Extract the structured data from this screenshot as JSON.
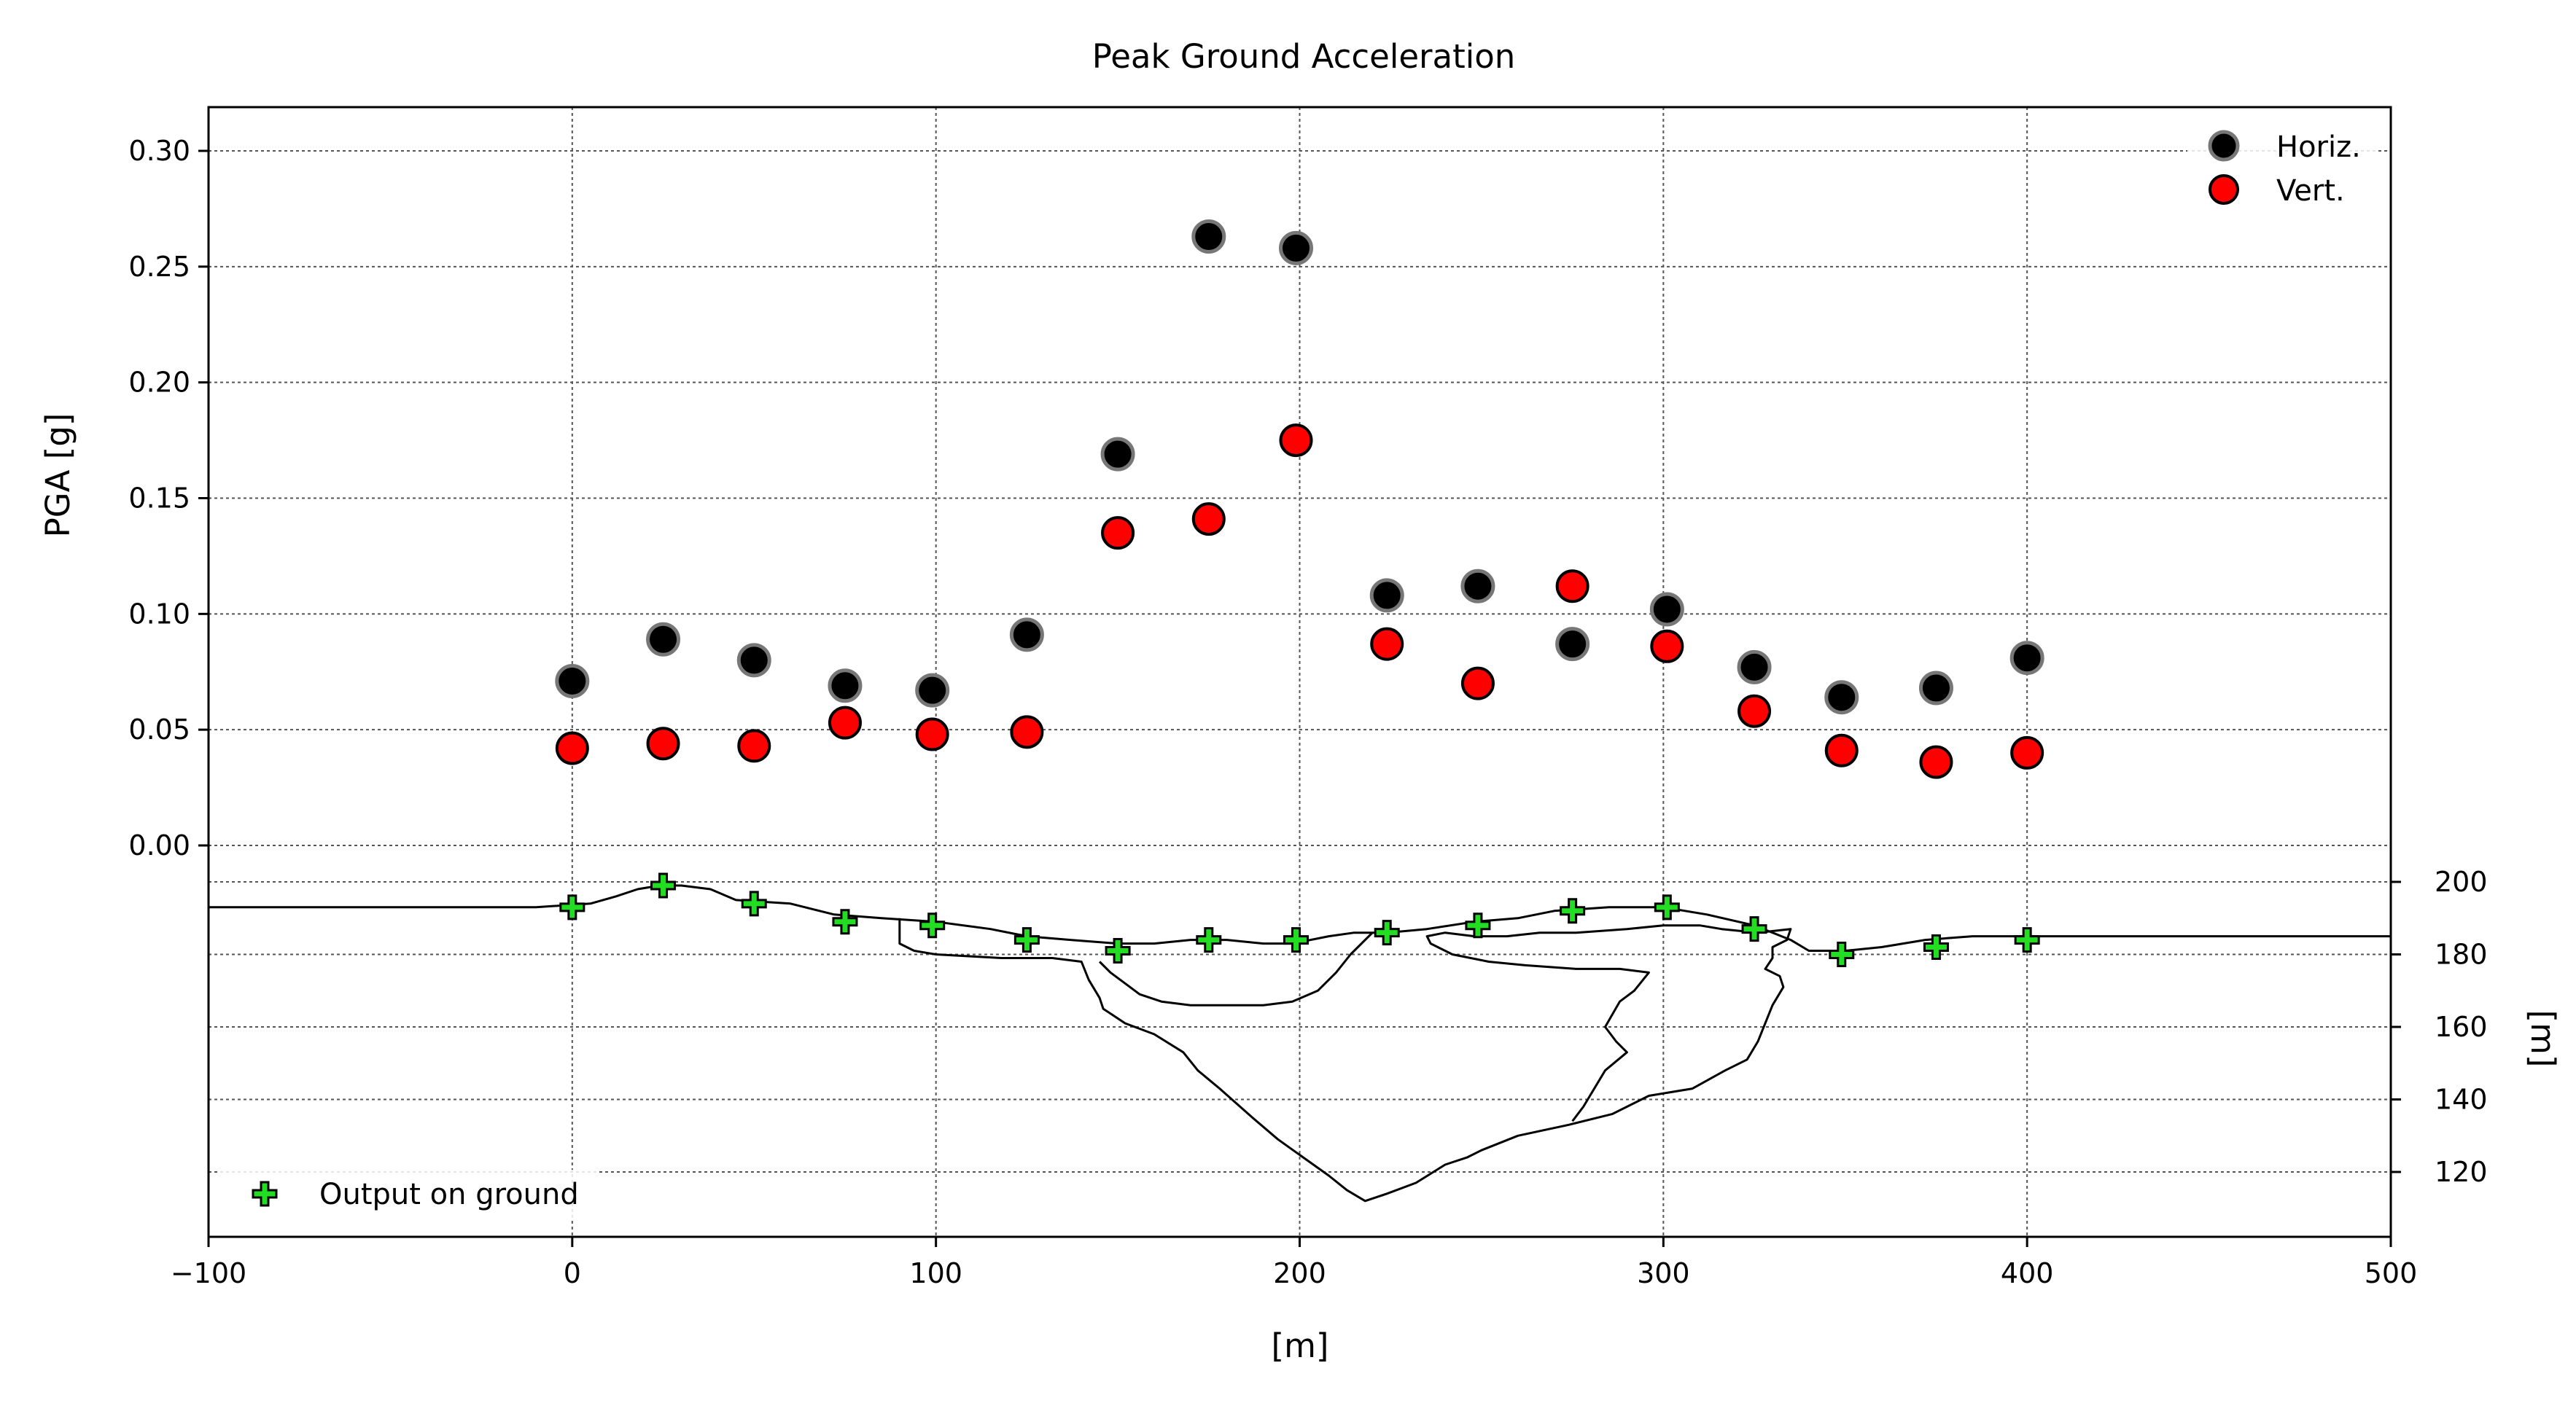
{
  "chart_data": {
    "type": "scatter",
    "title": "Peak Ground Acceleration",
    "xlabel": "[m]",
    "ylabel": "PGA [g]",
    "y2label": "[m]",
    "xlim": [
      -100,
      500
    ],
    "ylim": [
      0,
      0.32
    ],
    "y2lim": [
      102,
      203
    ],
    "x_ticks": [
      "−100",
      "0",
      "100",
      "200",
      "300",
      "400",
      "500"
    ],
    "x_tick_values": [
      -100,
      0,
      100,
      200,
      300,
      400,
      500
    ],
    "y_ticks": [
      "0.00",
      "0.05",
      "0.10",
      "0.15",
      "0.20",
      "0.25",
      "0.30"
    ],
    "y_tick_values": [
      0,
      0.05,
      0.1,
      0.15,
      0.2,
      0.25,
      0.3
    ],
    "y2_ticks": [
      "120",
      "140",
      "160",
      "180",
      "200"
    ],
    "y2_tick_values": [
      120,
      140,
      160,
      180,
      200
    ],
    "grid": true,
    "series": [
      {
        "name": "Horiz.",
        "color": "#000000",
        "edge": "#777777",
        "x": [
          0,
          25,
          50,
          75,
          99,
          125,
          150,
          175,
          199,
          224,
          249,
          275,
          301,
          325,
          349,
          375,
          400
        ],
        "y": [
          0.071,
          0.089,
          0.08,
          0.069,
          0.067,
          0.091,
          0.169,
          0.263,
          0.258,
          0.108,
          0.112,
          0.087,
          0.102,
          0.077,
          0.064,
          0.068,
          0.081
        ]
      },
      {
        "name": "Vert.",
        "color": "#ff0000",
        "edge": "#000000",
        "x": [
          0,
          25,
          50,
          75,
          99,
          125,
          150,
          175,
          199,
          224,
          249,
          275,
          301,
          325,
          349,
          375,
          400
        ],
        "y": [
          0.042,
          0.044,
          0.043,
          0.053,
          0.048,
          0.049,
          0.135,
          0.141,
          0.175,
          0.087,
          0.07,
          0.112,
          0.086,
          0.058,
          0.041,
          0.036,
          0.04
        ]
      }
    ],
    "ground_output": {
      "name": "Output on ground",
      "color": "#22dd22",
      "x": [
        0,
        25,
        50,
        75,
        99,
        125,
        150,
        175,
        199,
        224,
        249,
        275,
        301,
        325,
        349,
        375,
        400
      ],
      "elev": [
        193,
        199,
        194,
        189,
        188,
        184,
        181,
        184,
        184,
        186,
        188,
        192,
        193,
        187,
        180,
        182,
        184
      ]
    },
    "profile_lines": [
      [
        [
          -100,
          193
        ],
        [
          -60,
          193
        ],
        [
          -10,
          193
        ],
        [
          5,
          194
        ],
        [
          12,
          196
        ],
        [
          18,
          198
        ],
        [
          24,
          199
        ],
        [
          30,
          199
        ],
        [
          38,
          198
        ],
        [
          45,
          195
        ],
        [
          60,
          194
        ],
        [
          72,
          191
        ],
        [
          85,
          190
        ],
        [
          100,
          189
        ],
        [
          115,
          187
        ],
        [
          125,
          185
        ],
        [
          137,
          184
        ],
        [
          150,
          183
        ],
        [
          160,
          183
        ],
        [
          170,
          184
        ],
        [
          180,
          184
        ],
        [
          190,
          183
        ],
        [
          198,
          183
        ],
        [
          208,
          185
        ],
        [
          215,
          186
        ],
        [
          224,
          186
        ],
        [
          235,
          187
        ],
        [
          248,
          189
        ],
        [
          260,
          190
        ],
        [
          270,
          192
        ],
        [
          285,
          193
        ],
        [
          300,
          193
        ],
        [
          312,
          191
        ],
        [
          325,
          188
        ],
        [
          335,
          184
        ],
        [
          340,
          181
        ],
        [
          350,
          181
        ],
        [
          360,
          182
        ],
        [
          372,
          184
        ],
        [
          385,
          185
        ],
        [
          400,
          185
        ],
        [
          450,
          185
        ],
        [
          500,
          185
        ]
      ],
      [
        [
          90,
          190
        ],
        [
          90,
          183
        ],
        [
          94,
          181
        ],
        [
          100,
          180
        ],
        [
          118,
          179
        ],
        [
          132,
          179
        ],
        [
          140,
          178
        ],
        [
          142,
          173
        ],
        [
          145,
          168
        ],
        [
          146,
          165
        ],
        [
          152,
          161
        ],
        [
          160,
          158
        ],
        [
          168,
          153
        ],
        [
          172,
          148
        ],
        [
          178,
          143
        ],
        [
          187,
          135
        ],
        [
          194,
          129
        ],
        [
          201,
          124
        ],
        [
          208,
          119
        ],
        [
          213,
          115
        ],
        [
          218,
          112
        ],
        [
          224,
          114
        ],
        [
          232,
          117
        ],
        [
          240,
          122
        ],
        [
          246,
          124
        ],
        [
          250,
          126
        ],
        [
          260,
          130
        ],
        [
          274,
          133
        ],
        [
          286,
          136
        ],
        [
          296,
          141
        ],
        [
          308,
          143
        ],
        [
          317,
          148
        ],
        [
          323,
          151
        ],
        [
          326,
          156
        ],
        [
          330,
          166
        ],
        [
          333,
          171
        ],
        [
          332,
          174
        ],
        [
          328,
          176
        ],
        [
          330,
          179
        ],
        [
          330,
          182
        ],
        [
          334,
          184
        ],
        [
          335,
          187
        ],
        [
          326,
          186
        ],
        [
          316,
          187
        ],
        [
          310,
          188
        ],
        [
          300,
          188
        ],
        [
          290,
          187
        ],
        [
          276,
          186
        ],
        [
          266,
          186
        ],
        [
          257,
          185
        ],
        [
          248,
          185
        ],
        [
          240,
          186
        ],
        [
          235,
          185
        ],
        [
          236,
          183
        ],
        [
          242,
          180
        ],
        [
          252,
          178
        ],
        [
          262,
          177
        ],
        [
          276,
          176
        ],
        [
          288,
          176
        ],
        [
          296,
          175
        ],
        [
          292,
          170
        ],
        [
          288,
          167
        ],
        [
          284,
          160
        ],
        [
          287,
          156
        ],
        [
          290,
          153
        ],
        [
          284,
          148
        ],
        [
          278,
          138
        ],
        [
          275,
          134
        ]
      ],
      [
        [
          145,
          178
        ],
        [
          148,
          175
        ],
        [
          152,
          172
        ],
        [
          156,
          169
        ],
        [
          162,
          167
        ],
        [
          170,
          166
        ],
        [
          180,
          166
        ],
        [
          190,
          166
        ],
        [
          198,
          167
        ],
        [
          205,
          170
        ],
        [
          210,
          175
        ],
        [
          214,
          180
        ],
        [
          220,
          186
        ]
      ]
    ]
  }
}
